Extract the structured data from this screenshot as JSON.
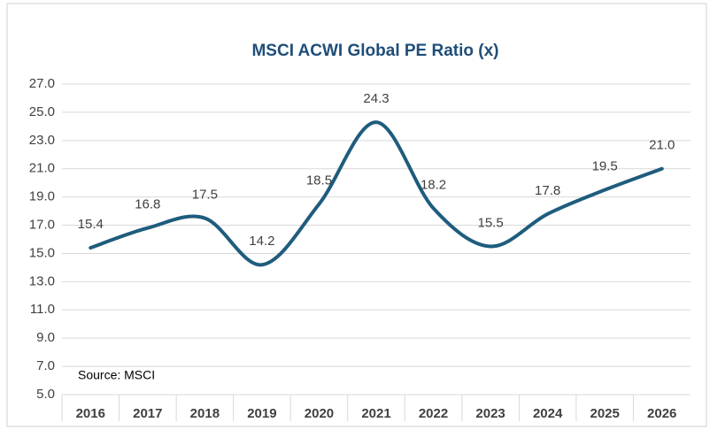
{
  "chart_data": {
    "type": "line",
    "title": "MSCI ACWI Global PE Ratio (x)",
    "categories": [
      "2016",
      "2017",
      "2018",
      "2019",
      "2020",
      "2021",
      "2022",
      "2023",
      "2024",
      "2025",
      "2026"
    ],
    "values": [
      15.4,
      16.8,
      17.5,
      14.2,
      18.5,
      24.3,
      18.2,
      15.5,
      17.8,
      19.5,
      21.0
    ],
    "value_labels": [
      "15.4",
      "16.8",
      "17.5",
      "14.2",
      "18.5",
      "24.3",
      "18.2",
      "15.5",
      "17.8",
      "19.5",
      "21.0"
    ],
    "color": "#1f5c7d",
    "ylim": [
      5,
      27
    ],
    "yticks": [
      {
        "value": 5,
        "label": "5.0"
      },
      {
        "value": 7,
        "label": "7.0"
      },
      {
        "value": 9,
        "label": "9.0"
      },
      {
        "value": 11,
        "label": "11.0"
      },
      {
        "value": 13,
        "label": "13.0"
      },
      {
        "value": 15,
        "label": "15.0"
      },
      {
        "value": 17,
        "label": "17.0"
      },
      {
        "value": 19,
        "label": "19.0"
      },
      {
        "value": 21,
        "label": "21.0"
      },
      {
        "value": 23,
        "label": "23.0"
      },
      {
        "value": 25,
        "label": "25.0"
      },
      {
        "value": 27,
        "label": "27.0"
      }
    ],
    "grid": true,
    "annotation": "Source: MSCI"
  }
}
